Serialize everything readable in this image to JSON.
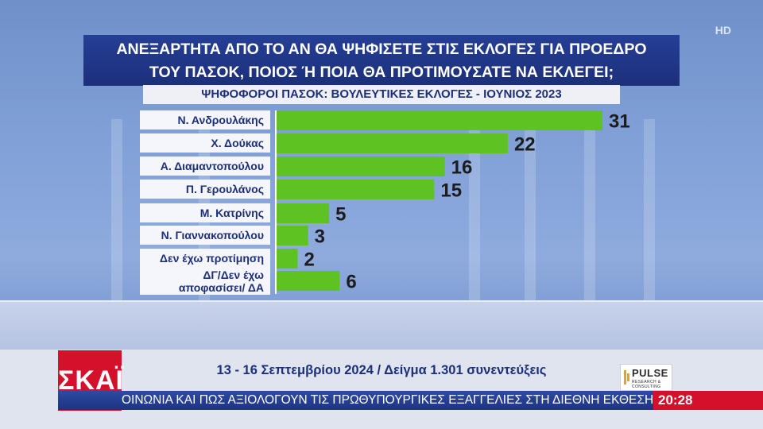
{
  "header": {
    "title_line1": "ΑΝΕΞΑΡΤΗΤΑ ΑΠΟ ΤΟ ΑΝ ΘΑ ΨΗΦΙΣΕΤΕ ΣΤΙΣ ΕΚΛΟΓΕΣ ΓΙΑ ΠΡΟΕΔΡΟ",
    "title_line2": "ΤΟΥ ΠΑΣΟΚ, ΠΟΙΟΣ Ή ΠΟΙΑ ΘΑ ΠΡΟΤΙΜΟΥΣΑΤΕ ΝΑ ΕΚΛΕΓΕΙ;",
    "subtitle": "ΨΗΦΟΦΟΡΟΙ ΠΑΣΟΚ: ΒΟΥΛΕΥΤΙΚΕΣ ΕΚΛΟΓΕΣ - ΙΟΥΝΙΟΣ 2023"
  },
  "chart_data": {
    "type": "bar",
    "orientation": "horizontal",
    "categories": [
      "Ν. Ανδρουλάκης",
      "Χ. Δούκας",
      "Α. Διαμαντοπούλου",
      "Π. Γερουλάνος",
      "Μ. Κατρίνης",
      "Ν. Γιαννακοπούλου",
      "Δεν έχω προτίμηση",
      "ΔΓ/Δεν έχω αποφασίσει/ ΔΑ"
    ],
    "category_lines": [
      [
        "Ν. Ανδρουλάκης"
      ],
      [
        "Χ. Δούκας"
      ],
      [
        "Α. Διαμαντοπούλου"
      ],
      [
        "Π. Γερουλάνος"
      ],
      [
        "Μ. Κατρίνης"
      ],
      [
        "Ν. Γιαννακοπούλου"
      ],
      [
        "Δεν έχω προτίμηση"
      ],
      [
        "ΔΓ/Δεν έχω",
        "αποφασίσει/ ΔΑ"
      ]
    ],
    "values": [
      31,
      22,
      16,
      15,
      5,
      3,
      2,
      6
    ],
    "bar_color": "#5ec322",
    "value_label_color": "#1c1c1c",
    "xlim": [
      0,
      31
    ]
  },
  "footer": {
    "channel_logo": "ΣΚΑΪ",
    "source": "13 - 16 Σεπτεμβρίου 2024 / Δείγμα 1.301 συνεντεύξεις",
    "pollster_logo": "PULSE",
    "pollster_sub": "RESEARCH & CONSULTING",
    "ticker": "ΟΙΝΩΝΙΑ ΚΑΙ ΠΩΣ ΑΞΙΟΛΟΓΟΥΝ ΤΙΣ ΠΡΩΘΥΠΟΥΡΓΙΚΕΣ ΕΞΑΓΓΕΛΙΕΣ ΣΤΗ ΔΙΕΘΝΗ ΕΚΘΕΣΗ ΘΕΣΣΑΛΟΝΙΚΗΣ",
    "clock": "20:28",
    "hd_badge": "HD"
  },
  "colors": {
    "title_bg": "#1c2f7a",
    "accent_red": "#d4102b",
    "bar_green": "#5ec322"
  }
}
